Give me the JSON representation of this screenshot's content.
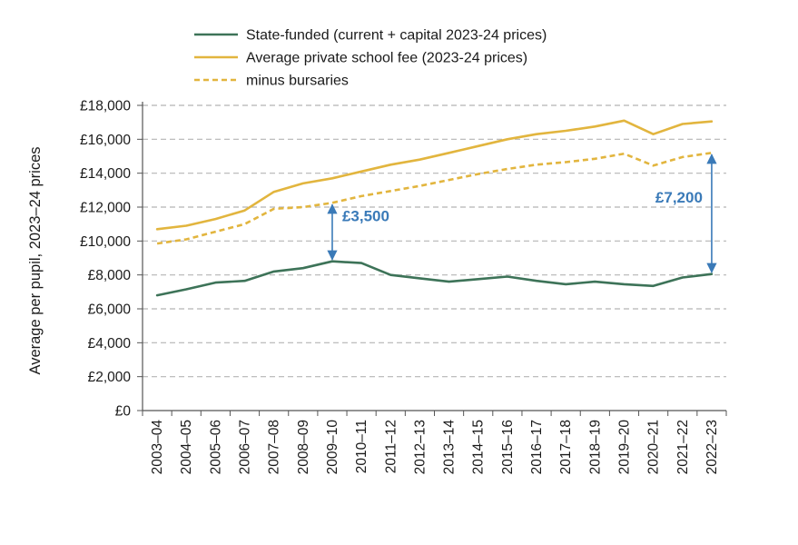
{
  "chart_data": {
    "type": "line",
    "title": "",
    "xlabel": "",
    "ylabel": "Average per pupil, 2023–24 prices",
    "ylim": [
      0,
      18000
    ],
    "ytick_step": 2000,
    "yticks": [
      "£0",
      "£2,000",
      "£4,000",
      "£6,000",
      "£8,000",
      "£10,000",
      "£12,000",
      "£14,000",
      "£16,000",
      "£18,000"
    ],
    "grid": "horizontal-dashed",
    "legend_position": "top",
    "categories": [
      "2003–04",
      "2004–05",
      "2005–06",
      "2006–07",
      "2007–08",
      "2008–09",
      "2009–10",
      "2010–11",
      "2011–12",
      "2012–13",
      "2013–14",
      "2014–15",
      "2015–16",
      "2016–17",
      "2017–18",
      "2018–19",
      "2019–20",
      "2020–21",
      "2021–22",
      "2022–23"
    ],
    "series": [
      {
        "name": "State-funded (current + capital 2023-24 prices)",
        "color": "#3d7358",
        "style": "solid",
        "values": [
          6800,
          7150,
          7550,
          7650,
          8200,
          8400,
          8800,
          8700,
          8000,
          7800,
          7600,
          7750,
          7900,
          7650,
          7450,
          7600,
          7450,
          7350,
          7850,
          8050
        ]
      },
      {
        "name": "Average private school fee (2023-24 prices)",
        "color": "#e2b53e",
        "style": "solid",
        "values": [
          10700,
          10900,
          11300,
          11800,
          12900,
          13400,
          13700,
          14100,
          14500,
          14800,
          15200,
          15600,
          16000,
          16300,
          16500,
          16750,
          17100,
          16300,
          16900,
          17050
        ]
      },
      {
        "name": "minus bursaries",
        "color": "#e2b53e",
        "style": "dashed",
        "values": [
          9850,
          10100,
          10550,
          11000,
          11900,
          12000,
          12250,
          12650,
          12950,
          13250,
          13600,
          13950,
          14250,
          14500,
          14650,
          14850,
          15150,
          14450,
          14950,
          15200
        ]
      }
    ],
    "annotations": [
      {
        "label": "£3,500",
        "category": "2009–10",
        "from": 8800,
        "to": 12250,
        "color": "#3a7ab8"
      },
      {
        "label": "£7,200",
        "category": "2022–23",
        "from": 8050,
        "to": 15200,
        "color": "#3a7ab8"
      }
    ]
  }
}
